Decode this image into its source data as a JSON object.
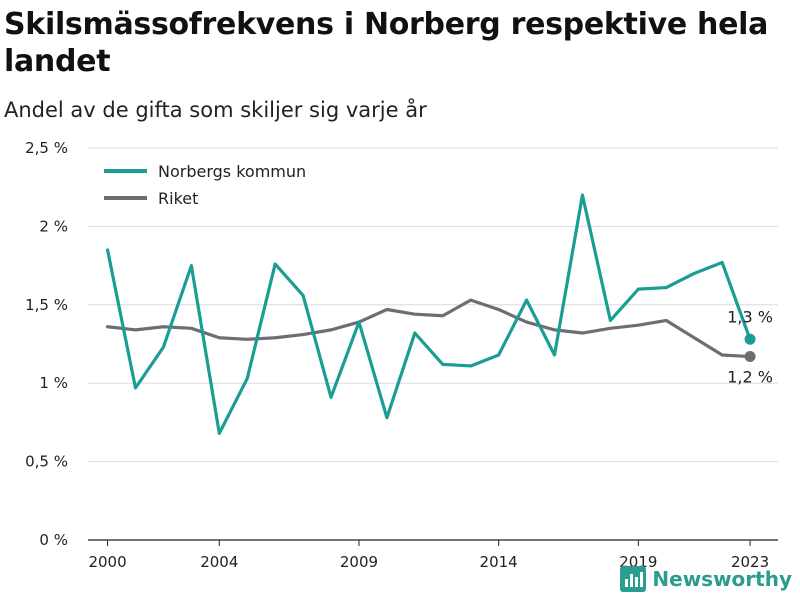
{
  "chart_data": {
    "type": "line",
    "title": "Skilsmässofrekvens i Norberg respektive hela landet",
    "subtitle": "Andel av de gifta som skiljer sig varje år",
    "xlabel": "",
    "ylabel": "",
    "x": [
      2000,
      2001,
      2002,
      2003,
      2004,
      2005,
      2006,
      2007,
      2008,
      2009,
      2010,
      2011,
      2012,
      2013,
      2014,
      2015,
      2016,
      2017,
      2018,
      2019,
      2020,
      2021,
      2022,
      2023
    ],
    "x_ticks": [
      "2000",
      "2004",
      "2009",
      "2014",
      "2019",
      "2023"
    ],
    "x_tick_values": [
      2000,
      2004,
      2009,
      2014,
      2019,
      2023
    ],
    "y_ticks": [
      "0 %",
      "0,5 %",
      "1 %",
      "1,5 %",
      "2 %",
      "2,5 %"
    ],
    "y_tick_values": [
      0,
      0.5,
      1,
      1.5,
      2,
      2.5
    ],
    "ylim": [
      0,
      2.5
    ],
    "xlim": [
      1999.3,
      2024.0
    ],
    "grid": "horizontal",
    "legend_position": "top-left",
    "series": [
      {
        "name": "Norbergs kommun",
        "color": "#1a9e94",
        "values": [
          1.85,
          0.97,
          1.23,
          1.75,
          0.68,
          1.03,
          1.76,
          1.56,
          0.91,
          1.39,
          0.78,
          1.32,
          1.12,
          1.11,
          1.18,
          1.53,
          1.18,
          2.2,
          1.4,
          1.6,
          1.61,
          1.7,
          1.77,
          1.28
        ],
        "end_label": "1,3 %"
      },
      {
        "name": "Riket",
        "color": "#6e6d72",
        "values": [
          1.36,
          1.34,
          1.36,
          1.35,
          1.29,
          1.28,
          1.29,
          1.31,
          1.34,
          1.39,
          1.47,
          1.44,
          1.43,
          1.53,
          1.47,
          1.39,
          1.34,
          1.32,
          1.35,
          1.37,
          1.4,
          1.29,
          1.18,
          1.17
        ],
        "end_label": "1,2 %"
      }
    ]
  },
  "brand": {
    "name": "Newsworthy",
    "logo_icon": "bar-chart-logo-icon",
    "color": "#2a9d8f"
  }
}
